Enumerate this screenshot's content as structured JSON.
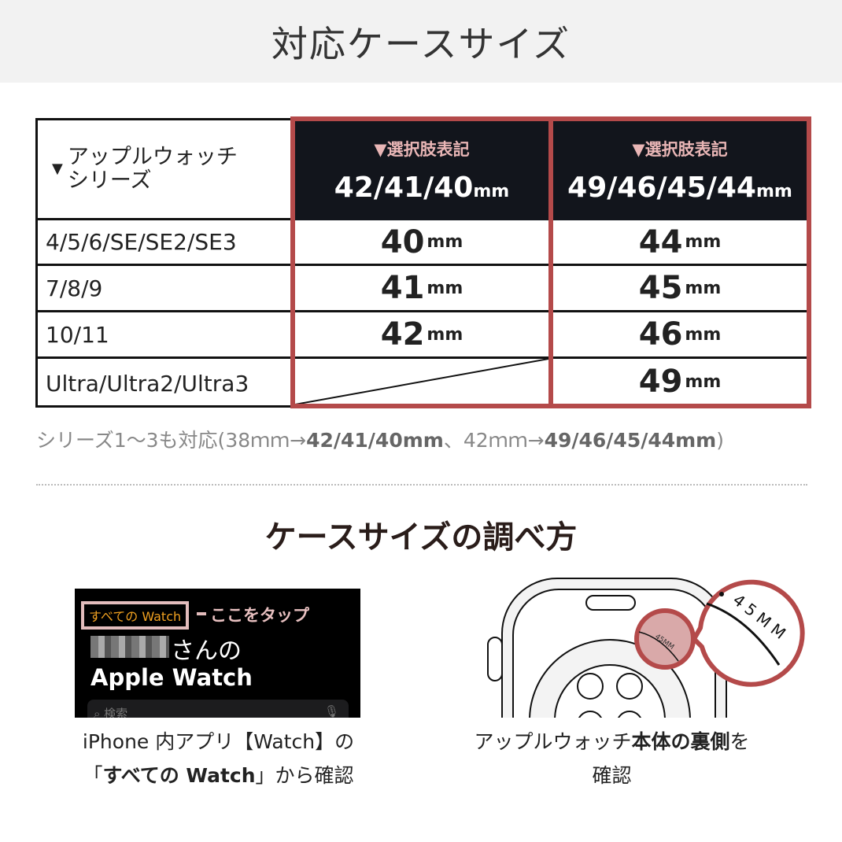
{
  "title": "対応ケースサイズ",
  "table": {
    "corner": {
      "line1": "アップルウォッチ",
      "line2": "シリーズ"
    },
    "headers": [
      {
        "sub": "▼選択肢表記",
        "value": "42/41/40",
        "unit": "mm"
      },
      {
        "sub": "▼選択肢表記",
        "value": "49/46/45/44",
        "unit": "mm"
      }
    ],
    "rows": [
      {
        "series": "4/5/6/SE/SE2/SE3",
        "a": "40",
        "b": "44"
      },
      {
        "series": "7/8/9",
        "a": "41",
        "b": "45"
      },
      {
        "series": "10/11",
        "a": "42",
        "b": "46"
      },
      {
        "series": "Ultra/Ultra2/Ultra3",
        "a": "",
        "b": "49"
      }
    ],
    "unit": "mm",
    "accent": "#b44a4a",
    "header_bg": "#12151c"
  },
  "note": {
    "pre": "シリーズ1〜3も対応(38ｍｍ→",
    "a": "42/41/40mm",
    "mid": "、42ｍｍ→",
    "b": "49/46/45/44mm",
    "post": ")"
  },
  "howto": {
    "title": "ケースサイズの調べ方",
    "phone": {
      "all_watch": "すべての Watch",
      "tap": "ここをタップ",
      "owner_suffix": "さんの",
      "app_title": "Apple Watch",
      "search": "検索"
    },
    "caption_left": {
      "l1": "iPhone 内アプリ【Watch】の",
      "l2a": "「",
      "l2b": "すべての Watch",
      "l2c": "」から確認"
    },
    "watch": {
      "engraving": "45MM"
    },
    "caption_right": {
      "l1a": "アップルウォッチ",
      "l1b": "本体の裏側",
      "l1c": "を",
      "l2": "確認"
    }
  }
}
